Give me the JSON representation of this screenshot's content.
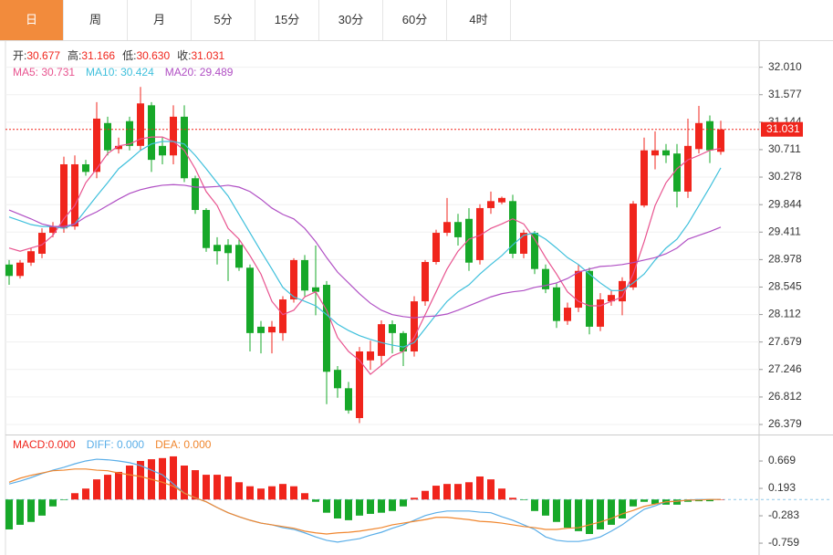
{
  "tabs": [
    "日",
    "周",
    "月",
    "5分",
    "15分",
    "30分",
    "60分",
    "4时"
  ],
  "active_tab": 0,
  "chart_data": [
    {
      "type": "candlestick",
      "info": [
        {
          "label": "开:",
          "value": "30.677"
        },
        {
          "label": "高:",
          "value": "31.166"
        },
        {
          "label": "低:",
          "value": "30.630"
        },
        {
          "label": "收:",
          "value": "31.031"
        }
      ],
      "up_color": "#f0251c",
      "down_color": "#17a829",
      "open": [
        28.9,
        28.72,
        28.93,
        29.07,
        29.4,
        29.47,
        29.5,
        30.48,
        30.36,
        31.13,
        30.72,
        31.16,
        30.77,
        31.41,
        30.77,
        30.62,
        31.23,
        30.26,
        29.76,
        29.21,
        29.21,
        29.21,
        28.85,
        27.92,
        27.83,
        27.82,
        28.35,
        28.97,
        28.54,
        28.58,
        27.24,
        26.95,
        26.48,
        27.39,
        27.46,
        27.96,
        27.82,
        27.53,
        28.32,
        28.94,
        29.4,
        29.57,
        29.62,
        28.97,
        29.79,
        29.88,
        29.9,
        29.07,
        29.4,
        28.83,
        28.54,
        28.01,
        28.22,
        28.8,
        27.92,
        28.32,
        28.32,
        28.54,
        29.83,
        30.62,
        30.7,
        30.65,
        30.05,
        30.72,
        31.16,
        30.677
      ],
      "high": [
        28.97,
        28.97,
        29.16,
        29.47,
        29.57,
        30.6,
        30.62,
        30.55,
        31.46,
        31.23,
        30.9,
        31.23,
        31.7,
        31.46,
        30.9,
        31.41,
        31.41,
        30.3,
        29.79,
        29.33,
        29.3,
        29.3,
        28.9,
        28.01,
        28.01,
        28.4,
        29.0,
        29.05,
        29.2,
        28.64,
        27.3,
        27.05,
        27.6,
        27.7,
        28.02,
        28.02,
        27.85,
        28.4,
        28.97,
        29.45,
        29.95,
        29.7,
        29.79,
        29.85,
        30.05,
        29.97,
        30.0,
        29.45,
        29.43,
        28.9,
        28.6,
        28.3,
        28.9,
        28.85,
        28.45,
        28.5,
        28.7,
        29.9,
        30.9,
        31.0,
        30.8,
        30.8,
        31.2,
        31.4,
        31.25,
        31.166
      ],
      "low": [
        28.58,
        28.68,
        28.88,
        29.0,
        29.33,
        29.4,
        29.45,
        30.3,
        30.26,
        30.62,
        30.65,
        30.7,
        30.7,
        30.36,
        30.48,
        30.48,
        30.2,
        29.7,
        29.1,
        28.9,
        28.64,
        28.8,
        27.53,
        27.5,
        27.5,
        27.7,
        28.3,
        28.4,
        28.1,
        26.7,
        26.8,
        26.55,
        26.4,
        27.24,
        27.3,
        27.5,
        27.3,
        27.45,
        28.25,
        28.9,
        29.35,
        29.2,
        28.8,
        28.9,
        29.7,
        29.85,
        29.0,
        29.0,
        28.75,
        28.45,
        27.9,
        27.95,
        28.15,
        27.8,
        27.85,
        28.25,
        28.1,
        28.5,
        29.8,
        30.4,
        30.5,
        29.8,
        29.95,
        30.65,
        30.5,
        30.63
      ],
      "close": [
        28.72,
        28.93,
        29.11,
        29.4,
        29.5,
        30.48,
        30.48,
        30.36,
        31.2,
        30.7,
        30.77,
        30.77,
        31.44,
        30.55,
        30.62,
        31.23,
        30.26,
        29.76,
        29.16,
        29.11,
        29.08,
        28.85,
        27.82,
        27.82,
        27.92,
        28.35,
        28.97,
        28.49,
        28.47,
        27.21,
        26.95,
        26.6,
        27.53,
        27.53,
        27.96,
        27.82,
        27.53,
        28.32,
        28.94,
        29.4,
        29.57,
        29.33,
        28.93,
        29.79,
        29.9,
        29.95,
        29.07,
        29.4,
        28.83,
        28.51,
        28.01,
        28.22,
        28.8,
        27.92,
        28.35,
        28.42,
        28.64,
        29.86,
        30.7,
        30.7,
        30.62,
        30.05,
        30.77,
        31.13,
        30.7,
        31.031
      ],
      "series": [
        {
          "name": "MA5: 30.731",
          "color": "#e8538f",
          "values": [
            29.16,
            29.11,
            29.16,
            29.21,
            29.36,
            29.62,
            29.83,
            30.19,
            30.41,
            30.65,
            30.77,
            30.8,
            30.88,
            30.91,
            30.91,
            30.84,
            30.7,
            30.41,
            30.05,
            29.83,
            29.47,
            29.3,
            29.04,
            28.75,
            28.32,
            28.11,
            28.18,
            28.39,
            28.47,
            28.18,
            27.75,
            27.53,
            27.39,
            27.17,
            27.31,
            27.46,
            27.53,
            27.75,
            28.11,
            28.47,
            28.83,
            29.11,
            29.3,
            29.36,
            29.47,
            29.54,
            29.62,
            29.54,
            29.3,
            29.01,
            28.75,
            28.47,
            28.32,
            28.25,
            28.25,
            28.32,
            28.39,
            28.75,
            29.26,
            29.83,
            30.19,
            30.41,
            30.55,
            30.62,
            30.7,
            30.731
          ]
        },
        {
          "name": "MA10: 30.424",
          "color": "#3fc0dc",
          "values": [
            29.65,
            29.59,
            29.53,
            29.5,
            29.5,
            29.47,
            29.54,
            29.76,
            29.98,
            30.19,
            30.41,
            30.55,
            30.7,
            30.8,
            30.84,
            30.84,
            30.8,
            30.62,
            30.41,
            30.19,
            29.98,
            29.69,
            29.4,
            29.11,
            28.83,
            28.54,
            28.39,
            28.32,
            28.25,
            28.11,
            27.96,
            27.86,
            27.78,
            27.72,
            27.67,
            27.63,
            27.6,
            27.67,
            27.89,
            28.11,
            28.32,
            28.47,
            28.58,
            28.75,
            28.9,
            29.04,
            29.21,
            29.36,
            29.4,
            29.3,
            29.16,
            29.01,
            28.9,
            28.75,
            28.61,
            28.49,
            28.49,
            28.61,
            28.75,
            28.97,
            29.16,
            29.3,
            29.54,
            29.83,
            30.12,
            30.424
          ]
        },
        {
          "name": "MA20: 29.489",
          "color": "#b04fc4",
          "values": [
            29.76,
            29.69,
            29.62,
            29.54,
            29.5,
            29.5,
            29.54,
            29.65,
            29.73,
            29.83,
            29.93,
            30.02,
            30.08,
            30.12,
            30.15,
            30.16,
            30.15,
            30.12,
            30.12,
            30.13,
            30.15,
            30.12,
            30.05,
            29.93,
            29.79,
            29.69,
            29.62,
            29.47,
            29.26,
            29.01,
            28.78,
            28.61,
            28.44,
            28.29,
            28.18,
            28.11,
            28.08,
            28.06,
            28.08,
            28.09,
            28.12,
            28.18,
            28.25,
            28.32,
            28.39,
            28.44,
            28.47,
            28.49,
            28.54,
            28.57,
            28.61,
            28.68,
            28.78,
            28.83,
            28.87,
            28.88,
            28.9,
            28.93,
            28.97,
            29.01,
            29.07,
            29.16,
            29.3,
            29.36,
            29.42,
            29.489
          ]
        }
      ],
      "last_price": 31.031,
      "ylim": [
        26.221,
        32.379
      ],
      "yticks": [
        {
          "value": 32.01,
          "label": "32.010"
        },
        31.577,
        31.144,
        30.711,
        30.278,
        29.844,
        29.411,
        28.978,
        28.545,
        28.112,
        27.679,
        27.246,
        26.812,
        26.379
      ],
      "grid": true
    },
    {
      "type": "macd",
      "histogram": {
        "name": "MACD:0.000",
        "up_color": "#f0251c",
        "down_color": "#17a829",
        "values": [
          -0.52,
          -0.44,
          -0.39,
          -0.28,
          -0.12,
          -0.01,
          0.11,
          0.19,
          0.35,
          0.43,
          0.48,
          0.59,
          0.67,
          0.7,
          0.72,
          0.75,
          0.59,
          0.51,
          0.43,
          0.43,
          0.4,
          0.3,
          0.23,
          0.19,
          0.23,
          0.27,
          0.23,
          0.11,
          -0.04,
          -0.23,
          -0.33,
          -0.36,
          -0.28,
          -0.25,
          -0.23,
          -0.2,
          -0.12,
          0.03,
          0.15,
          0.24,
          0.27,
          0.27,
          0.3,
          0.4,
          0.35,
          0.19,
          0.03,
          -0.01,
          -0.2,
          -0.28,
          -0.39,
          -0.49,
          -0.55,
          -0.6,
          -0.52,
          -0.44,
          -0.33,
          -0.12,
          -0.04,
          -0.08,
          -0.09,
          -0.09,
          -0.04,
          -0.03,
          -0.03,
          0
        ]
      },
      "series": [
        {
          "name": "DIFF: 0.000",
          "color": "#5aaee8",
          "values": [
            0.27,
            0.32,
            0.38,
            0.45,
            0.51,
            0.56,
            0.62,
            0.67,
            0.7,
            0.69,
            0.67,
            0.64,
            0.59,
            0.51,
            0.43,
            0.27,
            0.11,
            0.03,
            -0.04,
            -0.14,
            -0.23,
            -0.3,
            -0.36,
            -0.41,
            -0.44,
            -0.49,
            -0.52,
            -0.58,
            -0.65,
            -0.71,
            -0.74,
            -0.71,
            -0.68,
            -0.62,
            -0.57,
            -0.5,
            -0.44,
            -0.36,
            -0.28,
            -0.23,
            -0.2,
            -0.2,
            -0.2,
            -0.22,
            -0.23,
            -0.3,
            -0.36,
            -0.44,
            -0.52,
            -0.65,
            -0.71,
            -0.73,
            -0.73,
            -0.7,
            -0.65,
            -0.55,
            -0.44,
            -0.3,
            -0.17,
            -0.11,
            -0.04,
            -0.03,
            -0.01,
            0,
            0,
            0
          ]
        },
        {
          "name": "DEA: 0.000",
          "color": "#f0862e",
          "values": [
            0.3,
            0.37,
            0.42,
            0.46,
            0.5,
            0.51,
            0.53,
            0.53,
            0.51,
            0.5,
            0.46,
            0.43,
            0.4,
            0.35,
            0.3,
            0.23,
            0.11,
            0.03,
            -0.04,
            -0.14,
            -0.23,
            -0.3,
            -0.36,
            -0.41,
            -0.44,
            -0.47,
            -0.5,
            -0.55,
            -0.58,
            -0.6,
            -0.58,
            -0.57,
            -0.55,
            -0.52,
            -0.49,
            -0.44,
            -0.41,
            -0.38,
            -0.35,
            -0.31,
            -0.31,
            -0.33,
            -0.35,
            -0.38,
            -0.39,
            -0.41,
            -0.44,
            -0.47,
            -0.49,
            -0.52,
            -0.52,
            -0.5,
            -0.49,
            -0.44,
            -0.39,
            -0.33,
            -0.25,
            -0.19,
            -0.12,
            -0.08,
            -0.04,
            -0.03,
            -0.01,
            -0.01,
            0,
            0
          ]
        }
      ],
      "ylim": [
        -0.933,
        1.098
      ],
      "yticks": [
        0.669,
        0.193,
        -0.283,
        -0.759
      ]
    }
  ]
}
